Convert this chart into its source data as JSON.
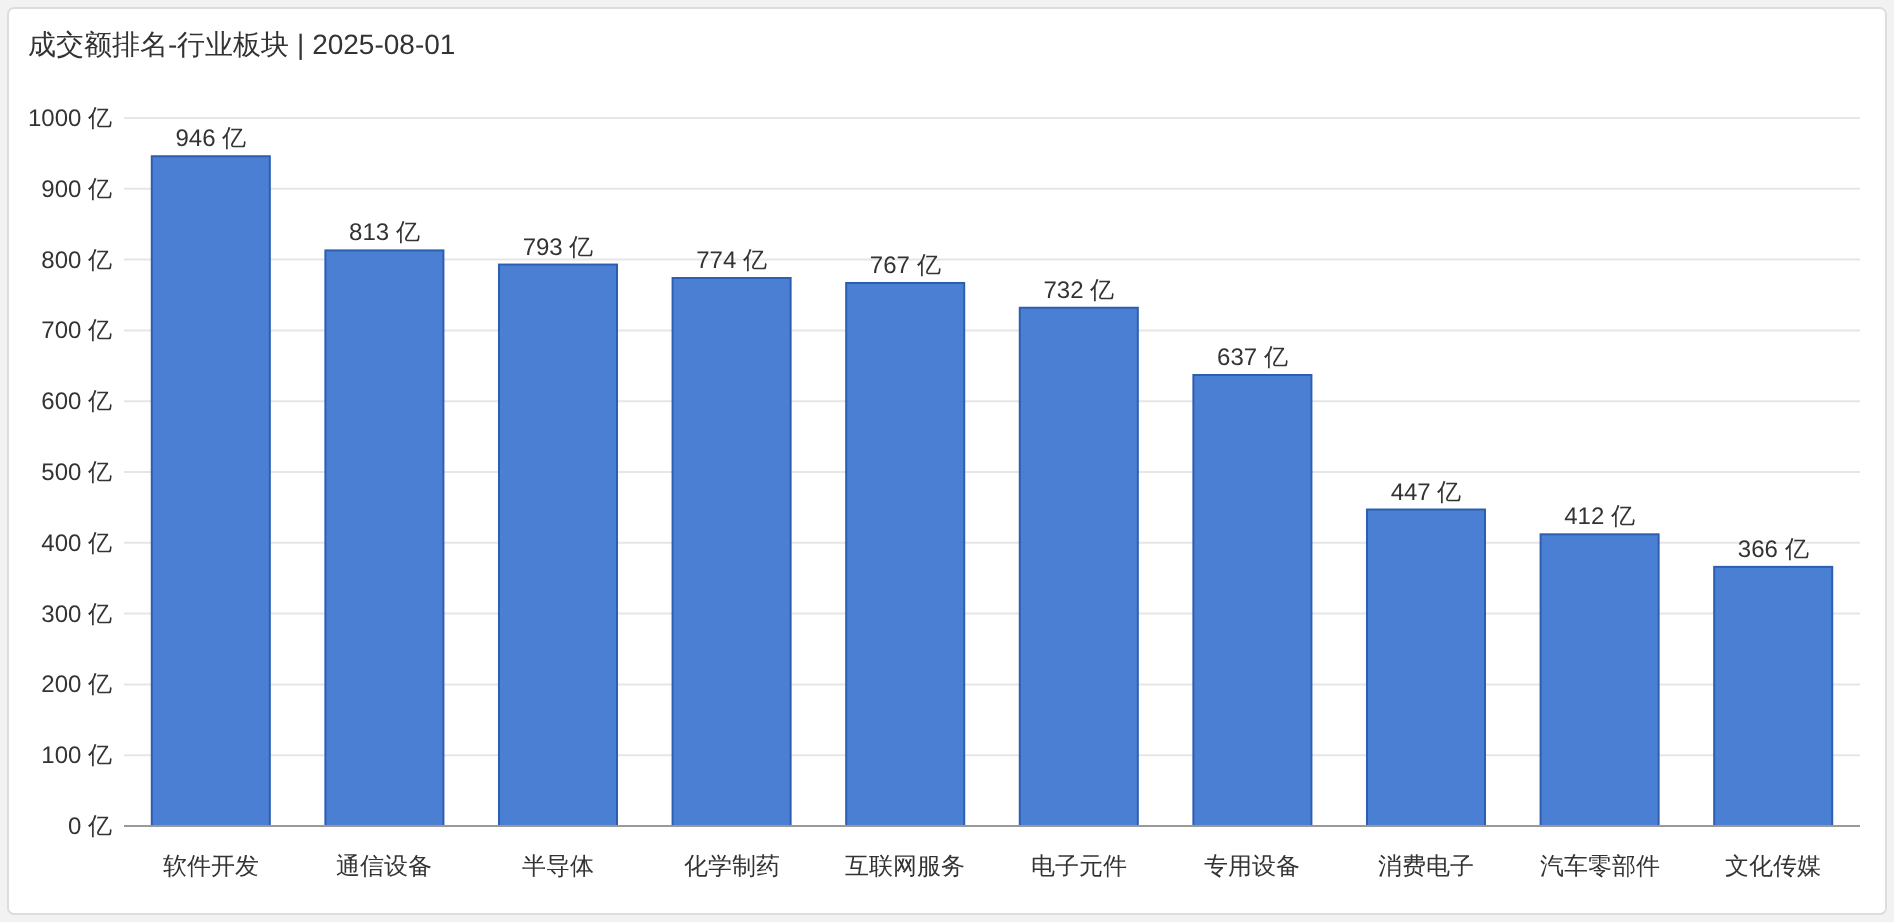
{
  "chart_data": {
    "type": "bar",
    "title": "成交额排名-行业板块 | 2025-08-01",
    "categories": [
      "软件开发",
      "通信设备",
      "半导体",
      "化学制药",
      "互联网服务",
      "电子元件",
      "专用设备",
      "消费电子",
      "汽车零部件",
      "文化传媒"
    ],
    "values": [
      946,
      813,
      793,
      774,
      767,
      732,
      637,
      447,
      412,
      366
    ],
    "value_labels": [
      "946 亿",
      "813 亿",
      "793 亿",
      "774 亿",
      "767 亿",
      "732 亿",
      "637 亿",
      "447 亿",
      "412 亿",
      "366 亿"
    ],
    "color": "#4a7fd4",
    "ylim": [
      0,
      1000
    ],
    "yticks": [
      {
        "value": 0,
        "label": "0 亿"
      },
      {
        "value": 100,
        "label": "100 亿"
      },
      {
        "value": 200,
        "label": "200 亿"
      },
      {
        "value": 300,
        "label": "300 亿"
      },
      {
        "value": 400,
        "label": "400 亿"
      },
      {
        "value": 500,
        "label": "500 亿"
      },
      {
        "value": 600,
        "label": "600 亿"
      },
      {
        "value": 700,
        "label": "700 亿"
      },
      {
        "value": 800,
        "label": "800 亿"
      },
      {
        "value": 900,
        "label": "900 亿"
      },
      {
        "value": 1000,
        "label": "1000 亿"
      }
    ],
    "grid": "y"
  }
}
